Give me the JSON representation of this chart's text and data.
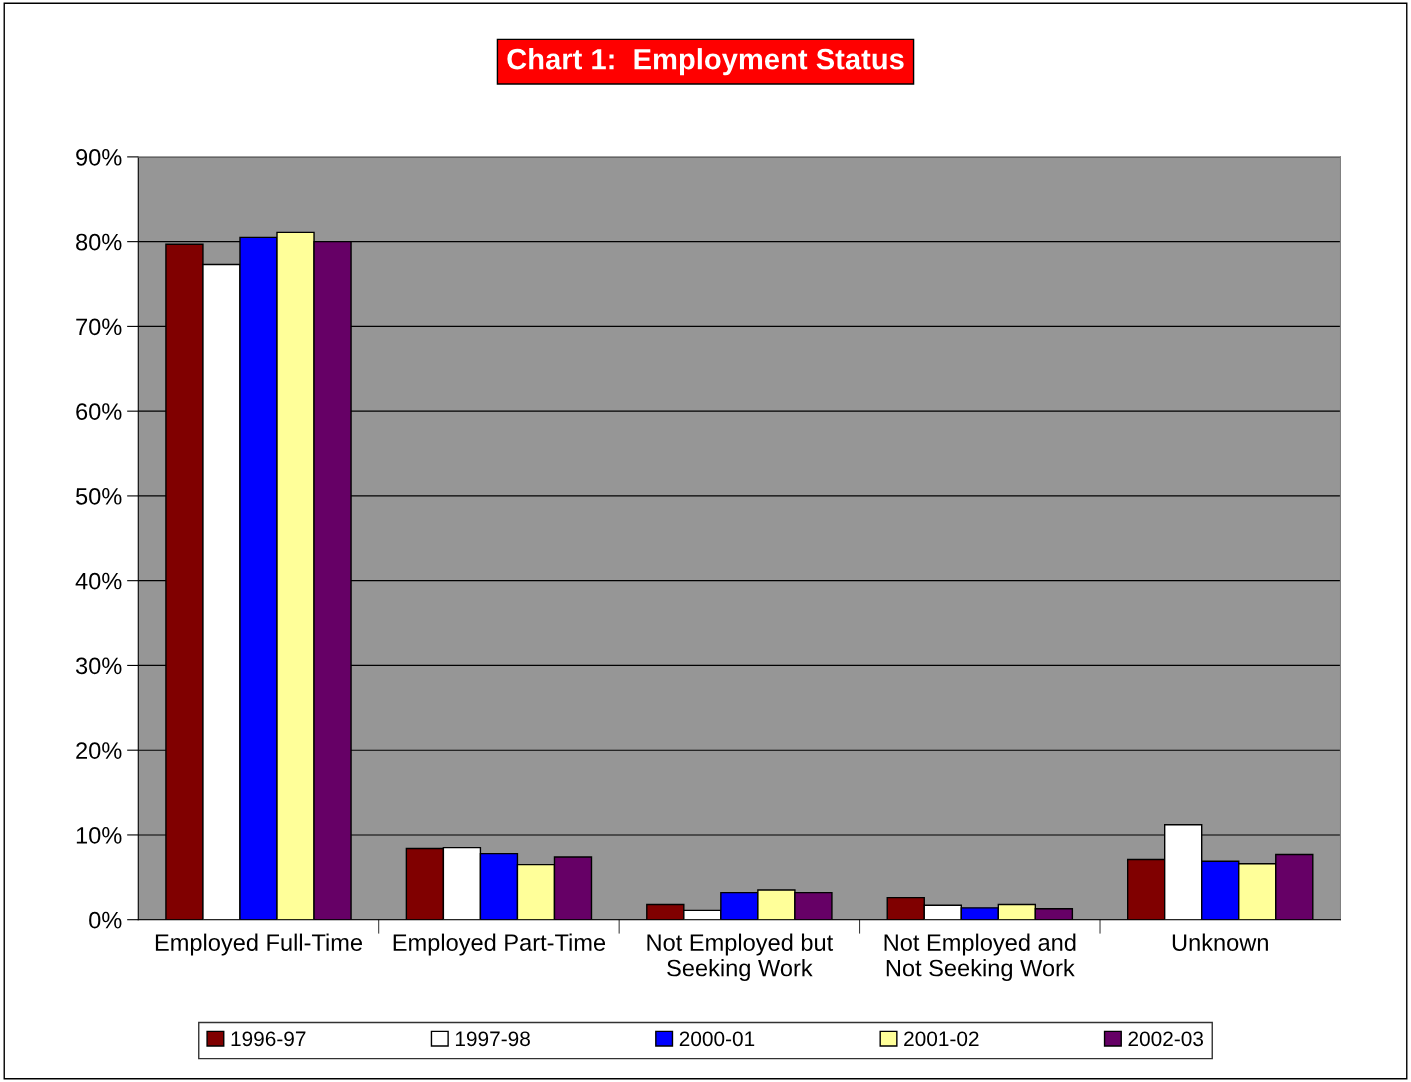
{
  "chart_data": {
    "type": "bar",
    "title": "Chart 1:  Employment Status",
    "categories": [
      "Employed Full-Time",
      "Employed Part-Time",
      "Not Employed but\nSeeking Work",
      "Not Employed and\nNot Seeking Work",
      "Unknown"
    ],
    "series": [
      {
        "name": "1996-97",
        "color": "#800000",
        "values": [
          79.7,
          8.4,
          1.8,
          2.6,
          7.1
        ]
      },
      {
        "name": "1997-98",
        "color": "#ffffff",
        "values": [
          77.3,
          8.5,
          1.1,
          1.7,
          11.2
        ]
      },
      {
        "name": "2000-01",
        "color": "#0000ff",
        "values": [
          80.5,
          7.8,
          3.2,
          1.4,
          6.9
        ]
      },
      {
        "name": "2001-02",
        "color": "#ffff99",
        "values": [
          81.1,
          6.5,
          3.5,
          1.8,
          6.6
        ]
      },
      {
        "name": "2002-03",
        "color": "#660066",
        "values": [
          80.0,
          7.4,
          3.2,
          1.3,
          7.7
        ]
      }
    ],
    "ylim": [
      0,
      90
    ],
    "yticks": [
      {
        "value": 0,
        "label": "0%"
      },
      {
        "value": 10,
        "label": "10%"
      },
      {
        "value": 20,
        "label": "20%"
      },
      {
        "value": 30,
        "label": "30%"
      },
      {
        "value": 40,
        "label": "40%"
      },
      {
        "value": 50,
        "label": "50%"
      },
      {
        "value": 60,
        "label": "60%"
      },
      {
        "value": 70,
        "label": "70%"
      },
      {
        "value": 80,
        "label": "80%"
      },
      {
        "value": 90,
        "label": "90%"
      }
    ],
    "grid": "y",
    "legend": "bottom"
  }
}
